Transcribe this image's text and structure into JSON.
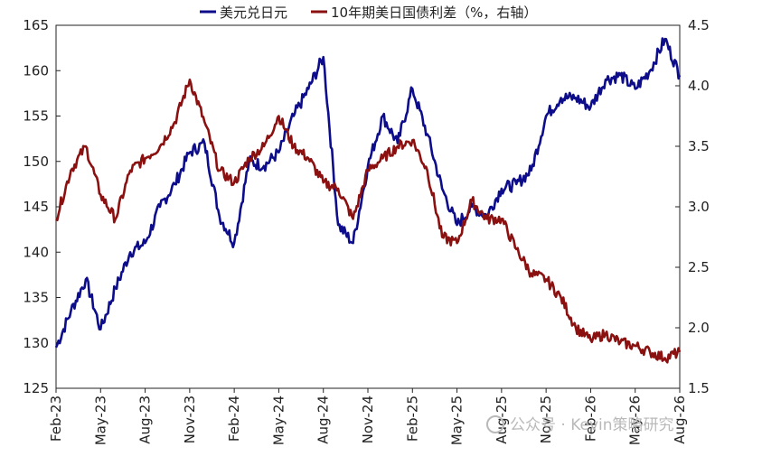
{
  "chart_data": {
    "type": "line",
    "title": "",
    "legend_position": "top-center",
    "grid": false,
    "x_tick_labels": [
      "Feb-23",
      "May-23",
      "Aug-23",
      "Nov-23",
      "Feb-24",
      "May-24",
      "Aug-24",
      "Nov-24",
      "Feb-25",
      "May-25",
      "Aug-25",
      "Nov-25",
      "Feb-26",
      "May-26",
      "Aug-26"
    ],
    "x_range": [
      "2023-02",
      "2026-08"
    ],
    "y_left": {
      "ticks": [
        125,
        130,
        135,
        140,
        145,
        150,
        155,
        160,
        165
      ],
      "range": [
        125,
        165
      ]
    },
    "y_right": {
      "ticks": [
        "1.5",
        "2.0",
        "2.5",
        "3.0",
        "3.5",
        "4.0",
        "4.5"
      ],
      "range": [
        1.5,
        4.5
      ]
    },
    "series": [
      {
        "name": "美元兑日元",
        "axis": "left",
        "color": "#0d0d8c",
        "points": [
          [
            "2023-02",
            129.5
          ],
          [
            "2023-03",
            133.5
          ],
          [
            "2023-04",
            137
          ],
          [
            "2023-05",
            131.5
          ],
          [
            "2023-06",
            136
          ],
          [
            "2023-07",
            140
          ],
          [
            "2023-08",
            141
          ],
          [
            "2023-09",
            145
          ],
          [
            "2023-10",
            147.5
          ],
          [
            "2023-11",
            151
          ],
          [
            "2023-12",
            152
          ],
          [
            "2024-01",
            144
          ],
          [
            "2024-02",
            141
          ],
          [
            "2024-03",
            150
          ],
          [
            "2024-04",
            149.5
          ],
          [
            "2024-05",
            151
          ],
          [
            "2024-06",
            155
          ],
          [
            "2024-07",
            158
          ],
          [
            "2024-08",
            161.5
          ],
          [
            "2024-09",
            143
          ],
          [
            "2024-10",
            141
          ],
          [
            "2024-11",
            149.5
          ],
          [
            "2024-12",
            155
          ],
          [
            "2025-01",
            152
          ],
          [
            "2025-02",
            158
          ],
          [
            "2025-03",
            153
          ],
          [
            "2025-04",
            147
          ],
          [
            "2025-05",
            143
          ],
          [
            "2025-06",
            145
          ],
          [
            "2025-07",
            144
          ],
          [
            "2025-08",
            147
          ],
          [
            "2025-09",
            147.5
          ],
          [
            "2025-10",
            149
          ],
          [
            "2025-11",
            155
          ],
          [
            "2025-12",
            157
          ],
          [
            "2026-01",
            157
          ],
          [
            "2026-02",
            156
          ],
          [
            "2026-03",
            159
          ],
          [
            "2026-04",
            159.5
          ],
          [
            "2026-05",
            158
          ],
          [
            "2026-06",
            160
          ],
          [
            "2026-07",
            163.5
          ],
          [
            "2026-08",
            159.5
          ]
        ]
      },
      {
        "name": "10年期美日国债利差（%，右轴）",
        "axis": "right",
        "color": "#8b1010",
        "points": [
          [
            "2023-02",
            2.9
          ],
          [
            "2023-03",
            3.3
          ],
          [
            "2023-04",
            3.5
          ],
          [
            "2023-05",
            3.1
          ],
          [
            "2023-06",
            2.9
          ],
          [
            "2023-07",
            3.3
          ],
          [
            "2023-08",
            3.4
          ],
          [
            "2023-09",
            3.5
          ],
          [
            "2023-10",
            3.7
          ],
          [
            "2023-11",
            4.05
          ],
          [
            "2023-12",
            3.7
          ],
          [
            "2024-01",
            3.3
          ],
          [
            "2024-02",
            3.2
          ],
          [
            "2024-03",
            3.4
          ],
          [
            "2024-04",
            3.5
          ],
          [
            "2024-05",
            3.75
          ],
          [
            "2024-06",
            3.5
          ],
          [
            "2024-07",
            3.4
          ],
          [
            "2024-08",
            3.2
          ],
          [
            "2024-09",
            3.15
          ],
          [
            "2024-10",
            2.9
          ],
          [
            "2024-11",
            3.3
          ],
          [
            "2024-12",
            3.4
          ],
          [
            "2025-01",
            3.5
          ],
          [
            "2025-02",
            3.55
          ],
          [
            "2025-03",
            3.3
          ],
          [
            "2025-04",
            2.75
          ],
          [
            "2025-05",
            2.7
          ],
          [
            "2025-06",
            3.05
          ],
          [
            "2025-07",
            2.9
          ],
          [
            "2025-08",
            2.9
          ],
          [
            "2025-09",
            2.65
          ],
          [
            "2025-10",
            2.45
          ],
          [
            "2025-11",
            2.4
          ],
          [
            "2025-12",
            2.25
          ],
          [
            "2026-01",
            2.0
          ],
          [
            "2026-02",
            1.9
          ],
          [
            "2026-03",
            1.95
          ],
          [
            "2026-04",
            1.88
          ],
          [
            "2026-05",
            1.85
          ],
          [
            "2026-06",
            1.8
          ],
          [
            "2026-07",
            1.75
          ],
          [
            "2026-08",
            1.8
          ]
        ]
      }
    ]
  },
  "watermark": "公众号 · Kevin策略研究"
}
